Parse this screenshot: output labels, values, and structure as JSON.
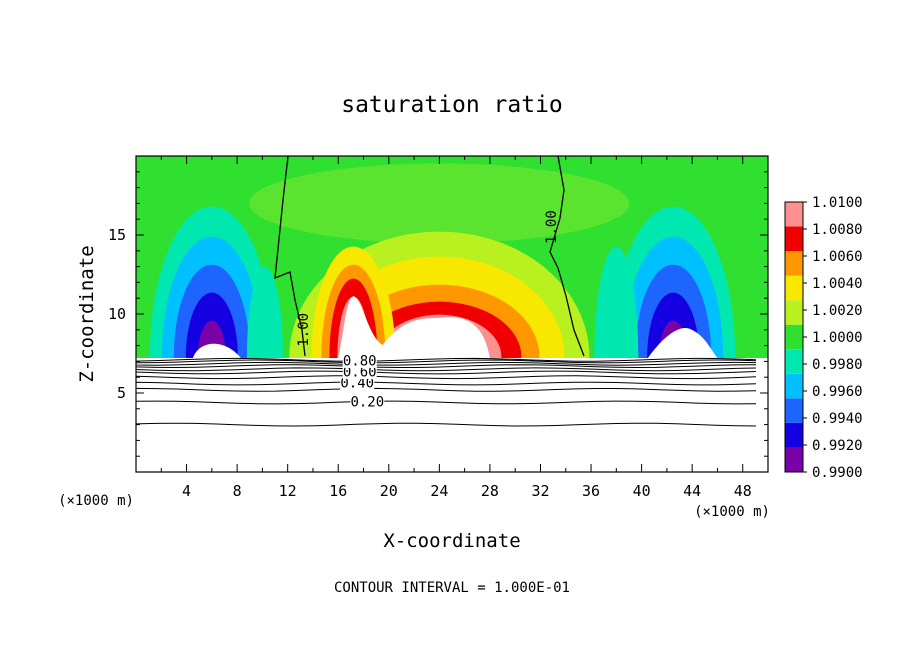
{
  "chart_data": {
    "type": "heatmap",
    "title": "saturation ratio",
    "xlabel": "X-coordinate",
    "ylabel": "Z-coordinate",
    "x_unit": "(×1000 m)",
    "y_unit": "(×1000 m)",
    "footer": "CONTOUR INTERVAL = 1.000E-01",
    "xlim": [
      0,
      50
    ],
    "ylim": [
      0,
      20
    ],
    "x_ticks": [
      4,
      8,
      12,
      16,
      20,
      24,
      28,
      32,
      36,
      40,
      44,
      48
    ],
    "y_ticks": [
      5,
      10,
      15
    ],
    "grid": false,
    "colorbar": {
      "placement": "right",
      "levels": [
        0.99,
        0.992,
        0.994,
        0.996,
        0.998,
        1.0,
        1.002,
        1.004,
        1.006,
        1.008,
        1.01
      ],
      "labels": [
        "0.9900",
        "0.9920",
        "0.9940",
        "0.9960",
        "0.9980",
        "1.0000",
        "1.0020",
        "1.0040",
        "1.0060",
        "1.0080",
        "1.0100"
      ],
      "colors": [
        "#7a00a8",
        "#1400e0",
        "#1e64ff",
        "#00c0ff",
        "#00e8b0",
        "#30e030",
        "#b8f020",
        "#f8e800",
        "#ff9800",
        "#f00000",
        "#ff9090"
      ]
    },
    "terrain_top_z": 7.3,
    "contour_lines": [
      {
        "label": "1.00",
        "label_x": 13.3,
        "label_z": 9.0
      },
      {
        "label": "1.00",
        "label_x": 32.9,
        "label_z": 15.5
      },
      {
        "label": "0.20",
        "label_x": 18.3,
        "label_z": 4.4
      },
      {
        "label": "0.40",
        "label_x": 17.5,
        "label_z": 5.6
      },
      {
        "label": "0.60",
        "label_x": 17.7,
        "label_z": 6.3
      },
      {
        "label": "0.80",
        "label_x": 17.7,
        "label_z": 7.0
      }
    ],
    "below_terrain_levels": [
      3.0,
      4.4,
      5.2,
      5.6,
      6.0,
      6.3,
      6.5,
      6.7,
      6.85,
      7.0,
      7.1
    ]
  }
}
